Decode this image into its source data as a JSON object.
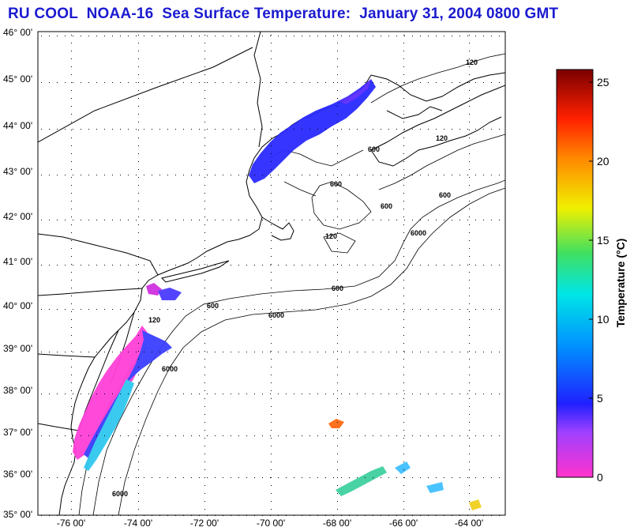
{
  "title": "RU COOL  NOAA-16  Sea Surface Temperature:  January 31, 2004 0800 GMT",
  "map": {
    "lat_labels": [
      "46° 00'",
      "45° 00'",
      "44° 00'",
      "43° 00'",
      "42° 00'",
      "41° 00'",
      "40° 00'",
      "39° 00'",
      "38° 00'",
      "37° 00'",
      "36° 00'",
      "35° 00'"
    ],
    "lon_labels": [
      "-76 00'",
      "-74 00'",
      "-72 00'",
      "-70 00'",
      "-68 00'",
      "-66 00'",
      "-64 00'"
    ],
    "contour_labels": [
      "600",
      "120",
      "600",
      "600",
      "6000",
      "600",
      "6000",
      "6000",
      "600",
      "120",
      "6000",
      "120",
      "120",
      "600"
    ]
  },
  "colorbar": {
    "label": "Temperature (°C)",
    "ticks": [
      "25",
      "20",
      "15",
      "10",
      "5",
      "0"
    ],
    "colors": {
      "low": "#ff33cc",
      "mid_low": "#2020ff",
      "mid": "#00e6e6",
      "mid_high": "#f0f000",
      "high": "#ff2000",
      "top": "#7a0000"
    }
  }
}
